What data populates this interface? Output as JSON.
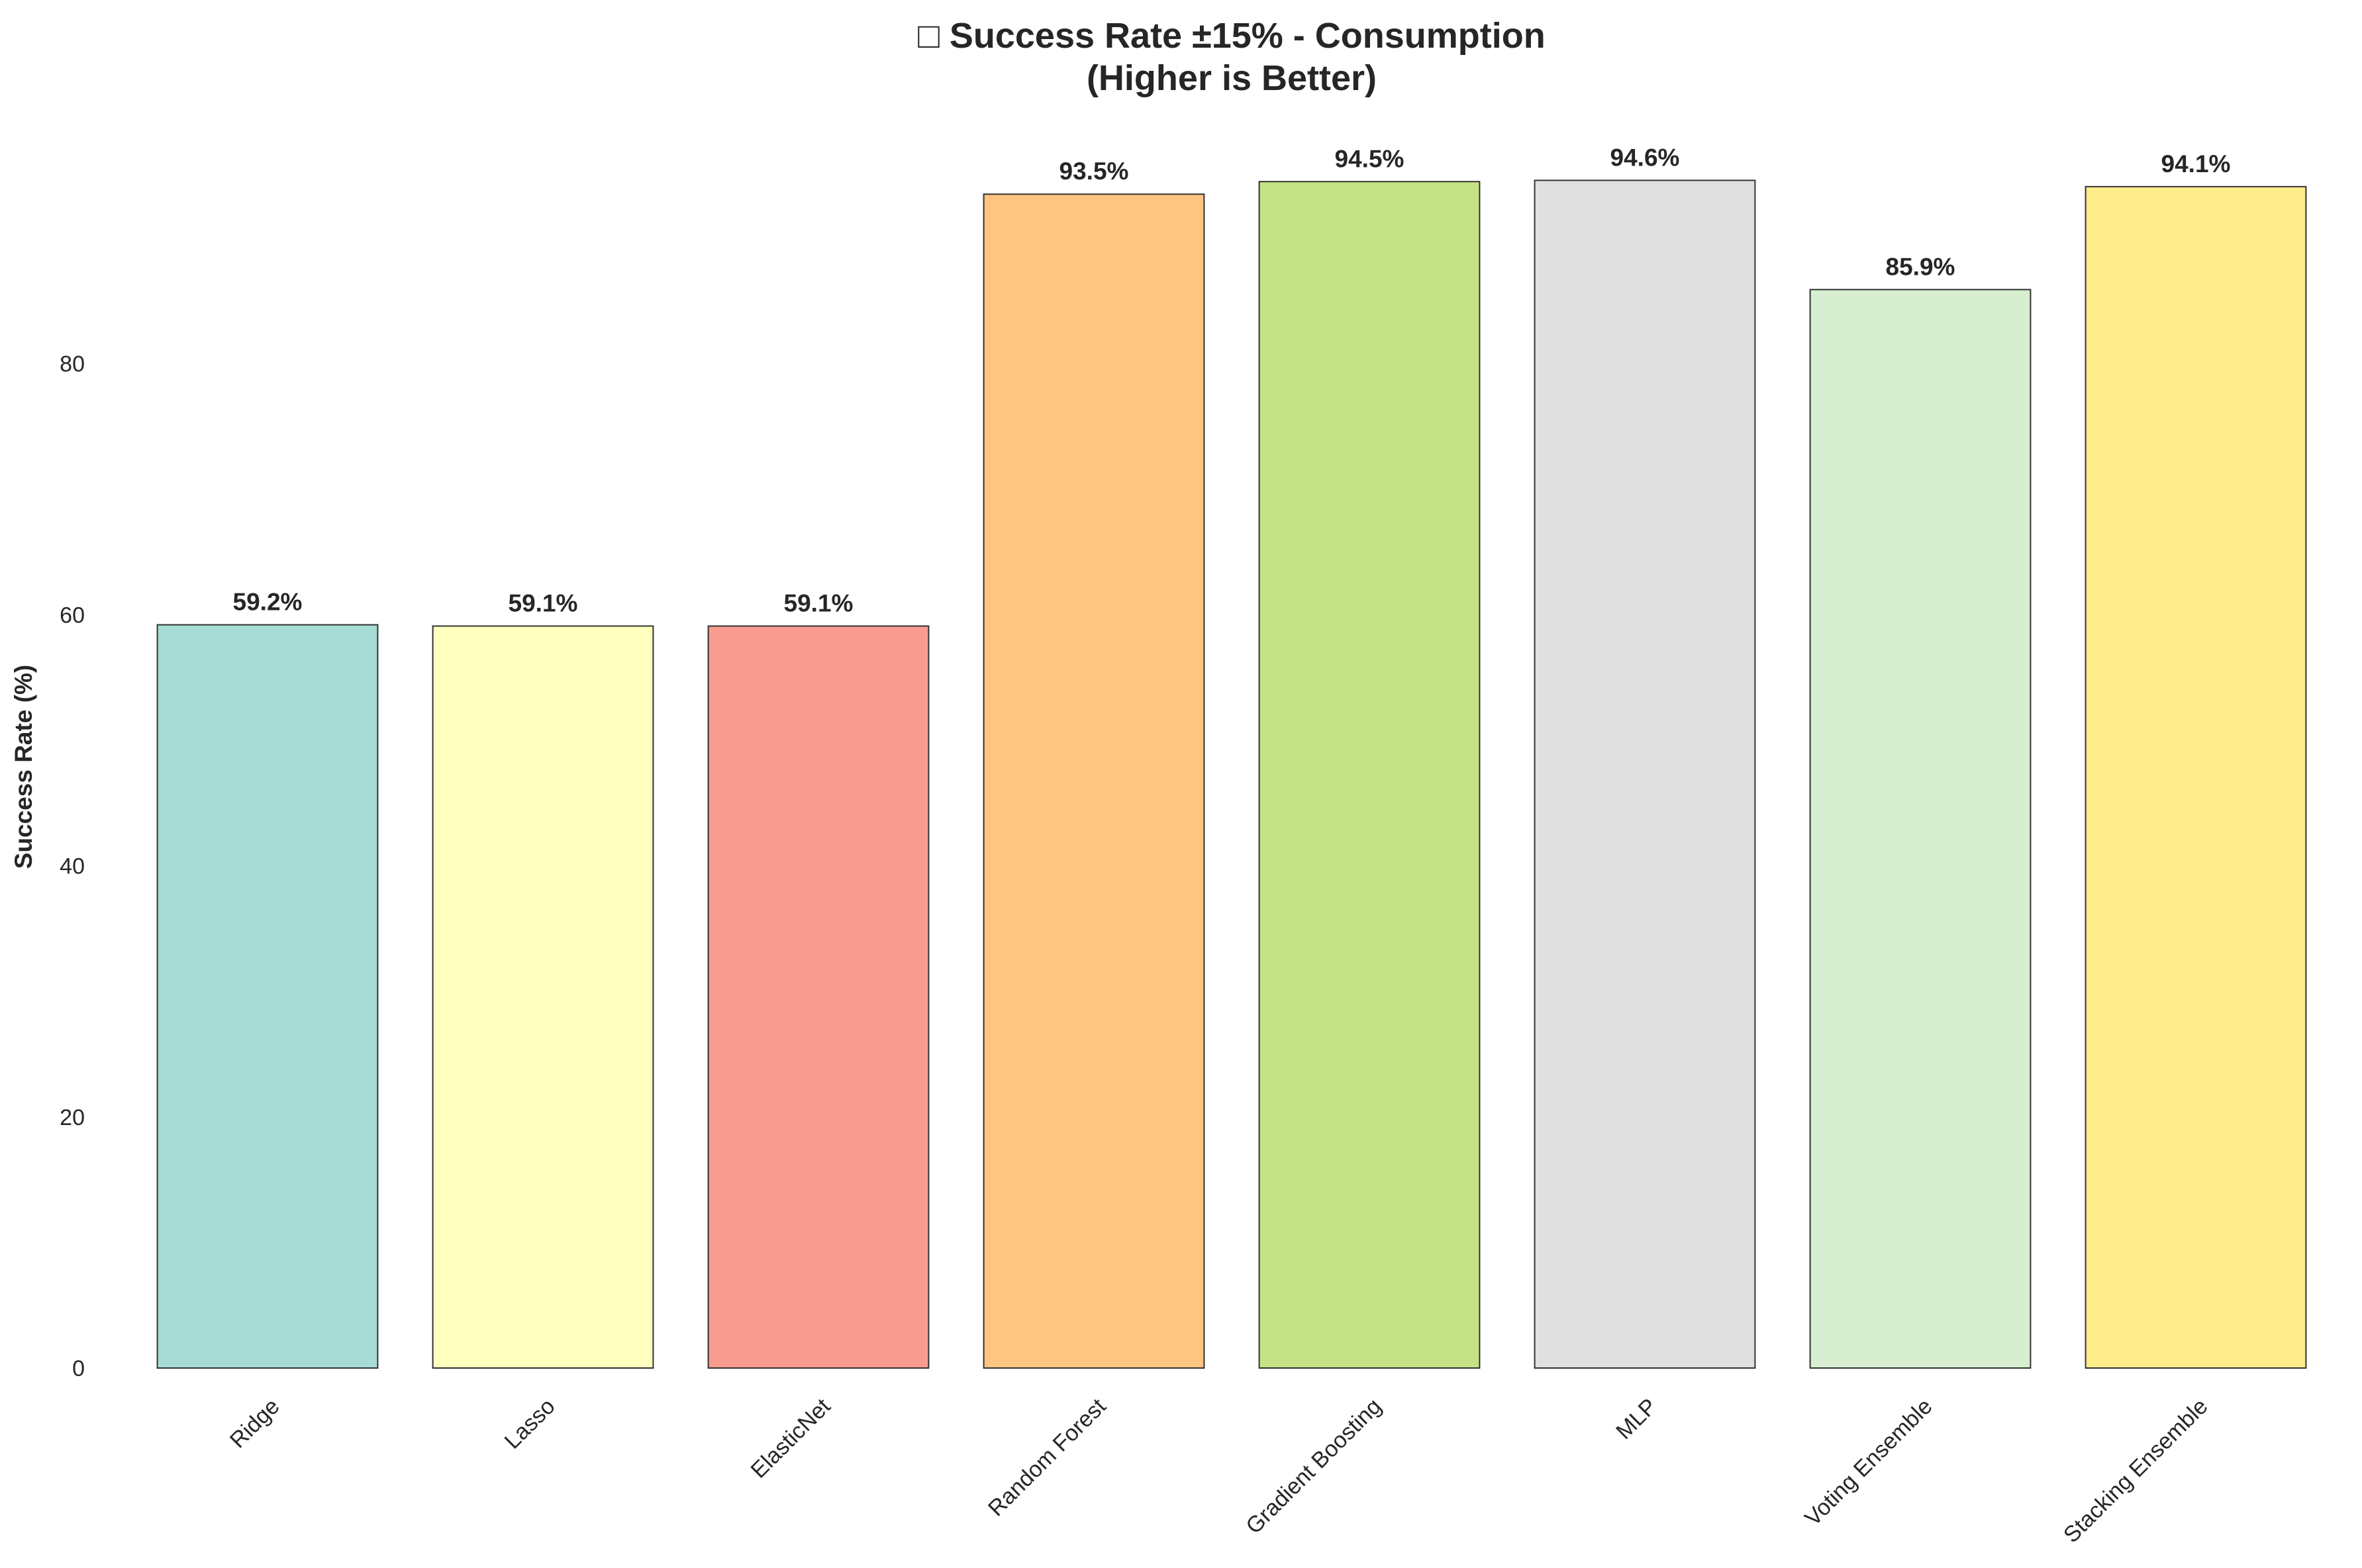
{
  "chart_data": {
    "type": "bar",
    "title": "□ Success Rate ±15% - Consumption",
    "subtitle": "(Higher is Better)",
    "xlabel": "",
    "ylabel": "Success Rate (%)",
    "ylim": [
      0,
      100
    ],
    "yticks": [
      0,
      20,
      40,
      60,
      80
    ],
    "grid": false,
    "categories": [
      "Ridge",
      "Lasso",
      "ElasticNet",
      "Random Forest",
      "Gradient Boosting",
      "MLP",
      "Voting Ensemble",
      "Stacking Ensemble"
    ],
    "values": [
      59.2,
      59.1,
      59.1,
      93.5,
      94.5,
      94.6,
      85.9,
      94.1
    ],
    "value_labels": [
      "59.2%",
      "59.1%",
      "59.1%",
      "93.5%",
      "94.5%",
      "94.6%",
      "85.9%",
      "94.1%"
    ],
    "colors": [
      "#a6dcd5",
      "#ffffbf",
      "#f99c90",
      "#fdc581",
      "#c5e384",
      "#e0e0e0",
      "#d7efd0",
      "#ffec8b"
    ],
    "edge_color": "#333333"
  }
}
